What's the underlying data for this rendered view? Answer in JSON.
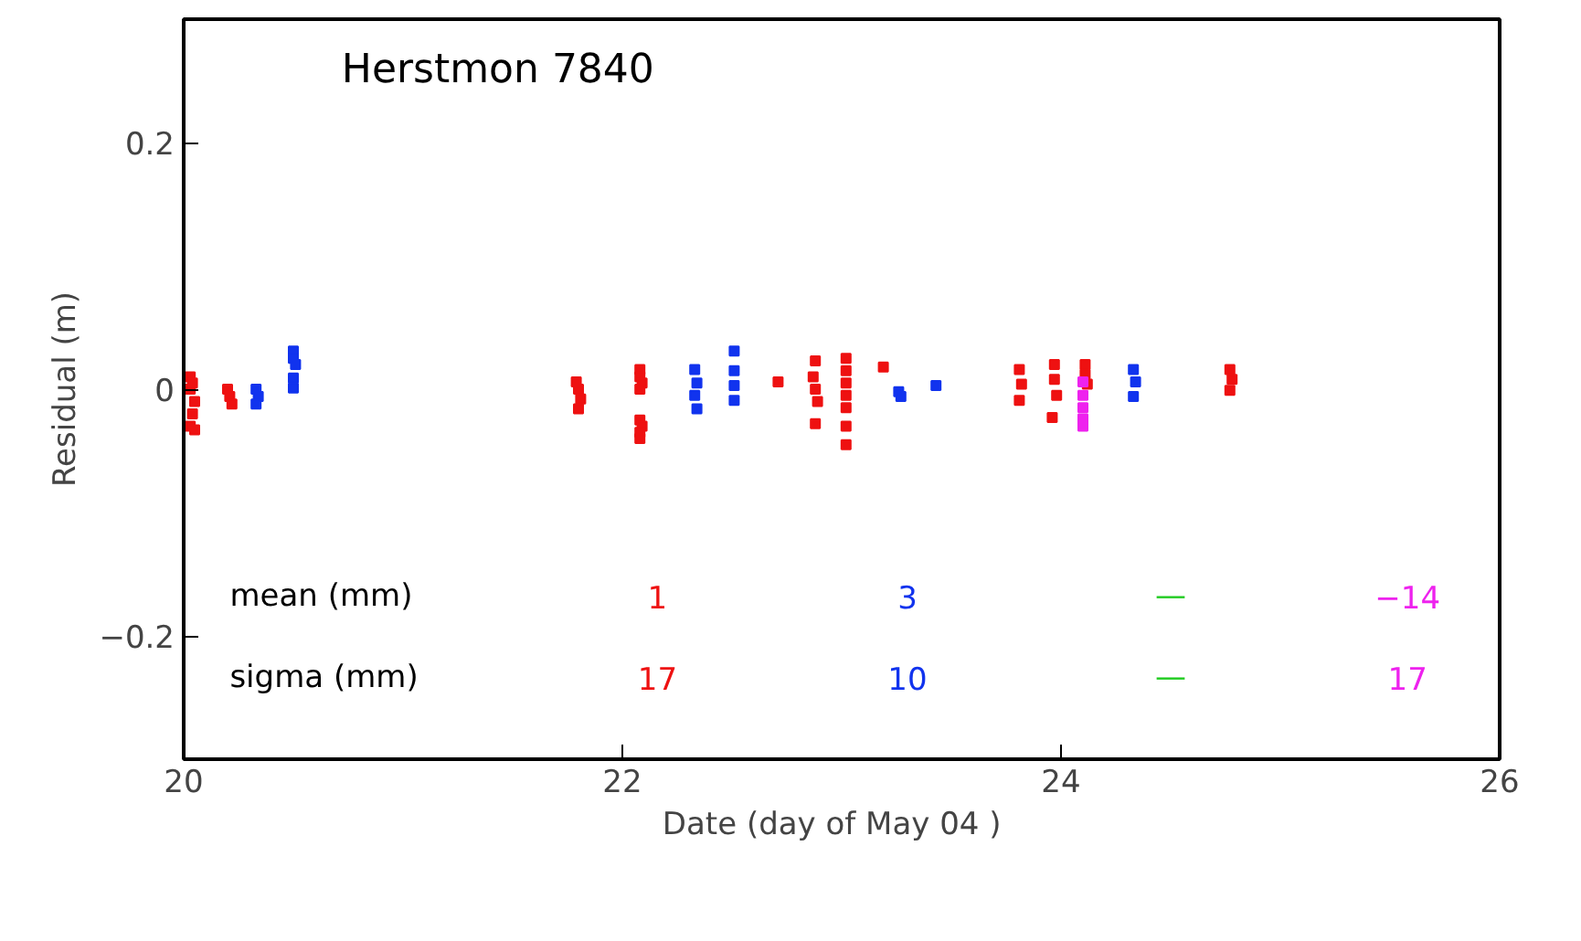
{
  "chart_data": {
    "type": "scatter",
    "title": "Herstmon      7840",
    "xlabel": "Date (day of May 04   )",
    "ylabel": "Residual (m)",
    "xlim": [
      20,
      26
    ],
    "ylim": [
      -0.3,
      0.3
    ],
    "xticks": [
      20,
      22,
      24,
      26
    ],
    "yticks": [
      {
        "value": -0.2,
        "label": "−0.2"
      },
      0,
      0.2
    ],
    "grid": false,
    "marker": "square",
    "series": [
      {
        "color": "#ee1111",
        "x": [
          20.03,
          20.04,
          20.03,
          20.05,
          20.04,
          20.03,
          20.05,
          20.2,
          20.21,
          20.22,
          21.79,
          21.8,
          21.81,
          21.8,
          22.08,
          22.08,
          22.09,
          22.08,
          22.08,
          22.09,
          22.08,
          22.08,
          22.71,
          22.88,
          22.87,
          22.88,
          22.89,
          22.88,
          23.02,
          23.02,
          23.02,
          23.02,
          23.02,
          23.02,
          23.02,
          23.19,
          23.81,
          23.82,
          23.81,
          23.97,
          23.97,
          23.98,
          23.96,
          24.11,
          24.11,
          24.12,
          24.77,
          24.78,
          24.77
        ],
        "values": [
          0.01,
          0.005,
          0.0,
          -0.01,
          -0.02,
          -0.03,
          -0.033,
          0.0,
          -0.006,
          -0.012,
          0.006,
          0.0,
          -0.008,
          -0.016,
          0.016,
          0.01,
          0.005,
          0.0,
          -0.025,
          -0.03,
          -0.035,
          -0.04,
          0.006,
          0.023,
          0.01,
          0.0,
          -0.01,
          -0.028,
          0.025,
          0.015,
          0.005,
          -0.005,
          -0.015,
          -0.03,
          -0.045,
          0.018,
          0.016,
          0.004,
          -0.009,
          0.02,
          0.008,
          -0.005,
          -0.023,
          0.02,
          0.012,
          0.004,
          0.016,
          0.008,
          -0.001
        ]
      },
      {
        "color": "#1133ee",
        "x": [
          20.33,
          20.34,
          20.33,
          20.5,
          20.5,
          20.51,
          20.5,
          20.5,
          22.33,
          22.34,
          22.33,
          22.34,
          22.51,
          22.51,
          22.51,
          22.51,
          23.26,
          23.27,
          23.43,
          24.33,
          24.34,
          24.33
        ],
        "values": [
          0.0,
          -0.006,
          -0.012,
          0.031,
          0.025,
          0.02,
          0.009,
          0.001,
          0.016,
          0.005,
          -0.005,
          -0.016,
          0.031,
          0.015,
          0.003,
          -0.009,
          -0.002,
          -0.006,
          0.003,
          0.016,
          0.006,
          -0.006
        ]
      },
      {
        "color": "#22cc22"
      },
      {
        "color": "#ee22ee",
        "x": [
          24.1,
          24.1,
          24.1,
          24.1,
          24.1
        ],
        "values": [
          0.006,
          -0.005,
          -0.015,
          -0.024,
          -0.03
        ]
      }
    ],
    "annotations": [
      "mean (mm)",
      "1",
      "3",
      "—",
      "−14",
      "sigma (mm)",
      "17",
      "10",
      "—",
      "17"
    ]
  }
}
